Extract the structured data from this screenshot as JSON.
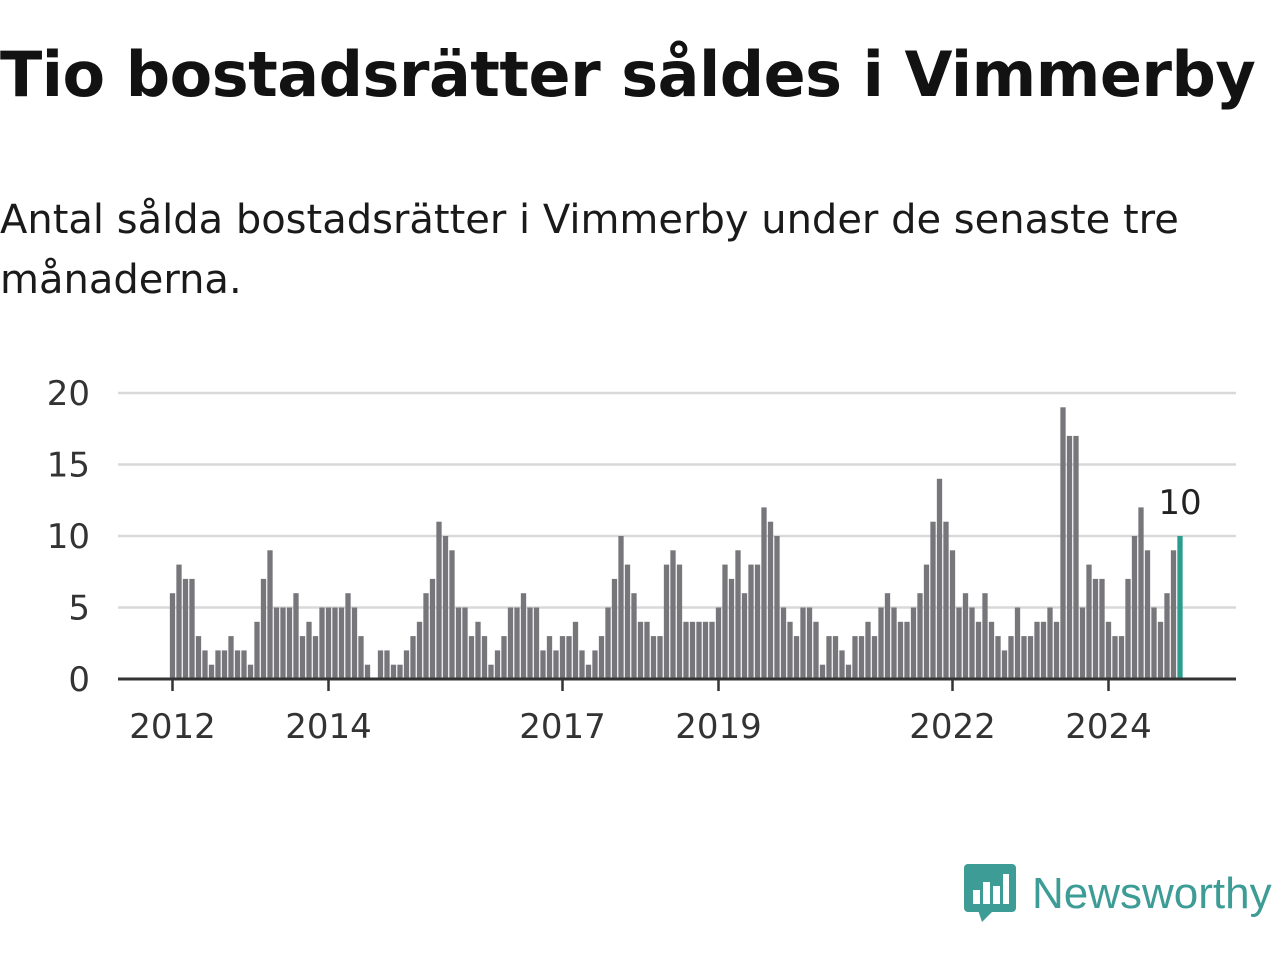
{
  "title": "Tio bostadsrätter såldes i Vimmerby",
  "subtitle": "Antal sålda bostadsrätter i Vimmerby under de senaste tre månaderna.",
  "brand": {
    "name": "Newsworthy",
    "color": "#3d9c96",
    "icon": "newsworthy-logo-icon"
  },
  "colors": {
    "bar": "#77767b",
    "highlight": "#2a9d8f",
    "grid": "#d9d9d9",
    "axis": "#333333"
  },
  "chart_data": {
    "type": "bar",
    "title": "Tio bostadsrätter såldes i Vimmerby",
    "subtitle": "Antal sålda bostadsrätter i Vimmerby under de senaste tre månaderna.",
    "xlabel": "",
    "ylabel": "",
    "ylim": [
      0,
      20
    ],
    "yticks": [
      "0",
      "5",
      "10",
      "15",
      "20"
    ],
    "grid": true,
    "legend": "none",
    "start_month": "2012-01",
    "xticks": [
      {
        "label": "2012",
        "month": "2012-01"
      },
      {
        "label": "2014",
        "month": "2014-01"
      },
      {
        "label": "2017",
        "month": "2017-01"
      },
      {
        "label": "2019",
        "month": "2019-01"
      },
      {
        "label": "2022",
        "month": "2022-01"
      },
      {
        "label": "2024",
        "month": "2024-01"
      }
    ],
    "values": [
      6,
      8,
      7,
      7,
      3,
      2,
      1,
      2,
      2,
      3,
      2,
      2,
      1,
      4,
      7,
      9,
      5,
      5,
      5,
      6,
      3,
      4,
      3,
      5,
      5,
      5,
      5,
      6,
      5,
      3,
      1,
      0,
      2,
      2,
      1,
      1,
      2,
      3,
      4,
      6,
      7,
      11,
      10,
      9,
      5,
      5,
      3,
      4,
      3,
      1,
      2,
      3,
      5,
      5,
      6,
      5,
      5,
      2,
      3,
      2,
      3,
      3,
      4,
      2,
      1,
      2,
      3,
      5,
      7,
      10,
      8,
      6,
      4,
      4,
      3,
      3,
      8,
      9,
      8,
      4,
      4,
      4,
      4,
      4,
      5,
      8,
      7,
      9,
      6,
      8,
      8,
      12,
      11,
      10,
      5,
      4,
      3,
      5,
      5,
      4,
      1,
      3,
      3,
      2,
      1,
      3,
      3,
      4,
      3,
      5,
      6,
      5,
      4,
      4,
      5,
      6,
      8,
      11,
      14,
      11,
      9,
      5,
      6,
      5,
      4,
      6,
      4,
      3,
      2,
      3,
      5,
      3,
      3,
      4,
      4,
      5,
      4,
      19,
      17,
      17,
      5,
      8,
      7,
      7,
      4,
      3,
      3,
      7,
      10,
      12,
      9,
      5,
      4,
      6,
      9,
      10
    ],
    "highlight": {
      "month": "2024-12",
      "value": 10,
      "label": "10"
    }
  }
}
